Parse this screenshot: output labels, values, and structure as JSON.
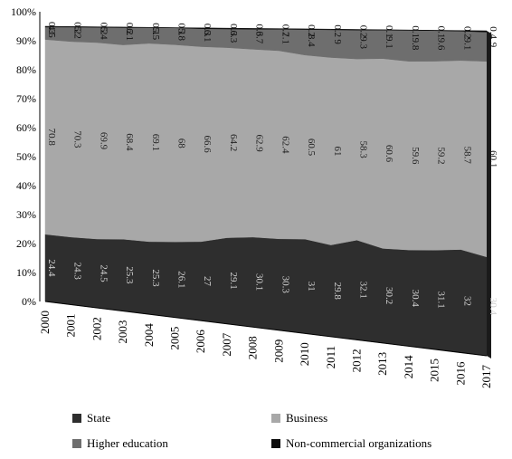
{
  "chart_data": {
    "type": "area",
    "stacked": "100%",
    "x": [
      "2000",
      "2001",
      "2002",
      "2003",
      "2004",
      "2005",
      "2006",
      "2007",
      "2008",
      "2009",
      "2010",
      "2011",
      "2012",
      "2013",
      "2014",
      "2015",
      "2016",
      "2017"
    ],
    "series": [
      {
        "name": "State",
        "color": "#2e2e2e",
        "values": [
          24.4,
          24.3,
          24.5,
          25.3,
          25.3,
          26.1,
          27,
          29.1,
          30.1,
          30.3,
          31,
          29.8,
          32.1,
          30.2,
          30.4,
          31.1,
          32,
          30.4
        ]
      },
      {
        "name": "Business",
        "color": "#a8a8a8",
        "values": [
          70.8,
          70.3,
          69.9,
          68.4,
          69.1,
          68,
          66.6,
          64.2,
          62.9,
          62.4,
          60.5,
          61,
          58.3,
          60.6,
          59.6,
          59.2,
          58.7,
          60.1
        ]
      },
      {
        "name": "Higher education",
        "color": "#6e6e6e",
        "values": [
          4.5,
          5.2,
          5.4,
          6.1,
          5.5,
          5.8,
          6.1,
          6.3,
          6.7,
          7.1,
          8.4,
          9,
          9.3,
          9.1,
          9.8,
          9.6,
          9.1,
          9
        ]
      },
      {
        "name": "Non-commercial organizations",
        "color": "#0d0d0d",
        "values": [
          0.3,
          0.2,
          0.2,
          0.2,
          0.1,
          0.1,
          0.3,
          0.3,
          0.3,
          0.2,
          0.2,
          0.2,
          0.2,
          0.1,
          0.1,
          0.1,
          0.2,
          0.4
        ]
      }
    ],
    "y_ticks": [
      "0%",
      "10%",
      "20%",
      "30%",
      "40%",
      "50%",
      "60%",
      "70%",
      "80%",
      "90%",
      "100%"
    ],
    "ylim": [
      0,
      100
    ],
    "grid": false,
    "legend_position": "bottom"
  }
}
